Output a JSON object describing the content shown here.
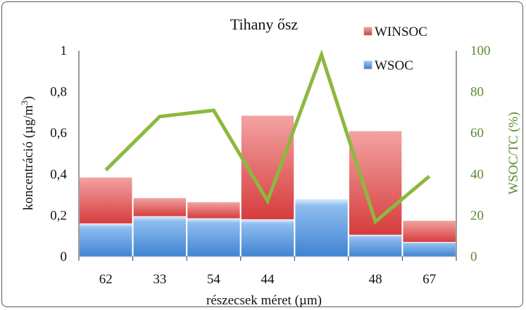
{
  "chart_data": {
    "type": "bar",
    "stacked": true,
    "title": "Tihany ősz",
    "xlabel": "részecsek méret (µm)",
    "ylabel": "koncentráció (µg/m3)",
    "ylabel_right": "WSOC/TC (%)",
    "categories": [
      "62",
      "33",
      "54",
      "44",
      "",
      "48",
      "67"
    ],
    "ylim": [
      0,
      1
    ],
    "y_ticks": [
      "0",
      "0,2",
      "0,4",
      "0,6",
      "0,8",
      "1"
    ],
    "y2lim": [
      0,
      100
    ],
    "y2_ticks": [
      "0",
      "20",
      "40",
      "60",
      "80",
      "100"
    ],
    "series": [
      {
        "name": "WSOC",
        "axis": "left",
        "kind": "bar",
        "color": "#4a8fd9",
        "values": [
          0.16,
          0.195,
          0.185,
          0.18,
          0.28,
          0.105,
          0.07
        ]
      },
      {
        "name": "WINSOC",
        "axis": "left",
        "kind": "bar",
        "color": "#dd4b4b",
        "values": [
          0.225,
          0.09,
          0.08,
          0.505,
          0.0,
          0.505,
          0.105
        ]
      },
      {
        "axis": "right",
        "kind": "line",
        "color": "#8db83e",
        "values": [
          42,
          68,
          71,
          27,
          98,
          17,
          39
        ]
      }
    ],
    "legend": [
      "WINSOC",
      "WSOC"
    ],
    "legend_position": "top-right",
    "grid": false
  }
}
